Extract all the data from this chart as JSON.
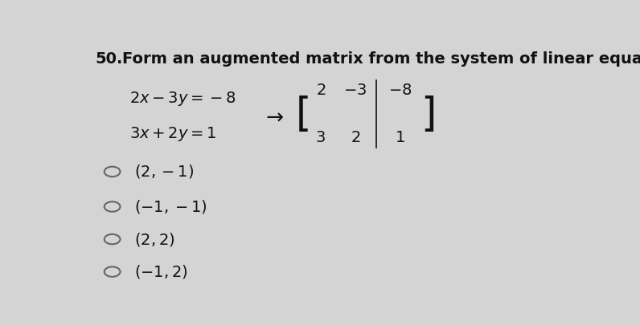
{
  "background_color": "#d4d4d4",
  "question_number": "50.",
  "question_text": "Form an augmented matrix from the system of linear equations and solve.",
  "matrix_rows": [
    [
      "2",
      "-3",
      "-8"
    ],
    [
      "3",
      "2",
      "1"
    ]
  ],
  "options": [
    "(2, -1)",
    "(-1, -1)",
    "(2, 2)",
    "(-1, 2)"
  ],
  "circle_color": "#666666",
  "text_color": "#111111",
  "option_fontsize": 14,
  "question_fontsize": 14,
  "math_fontsize": 13
}
